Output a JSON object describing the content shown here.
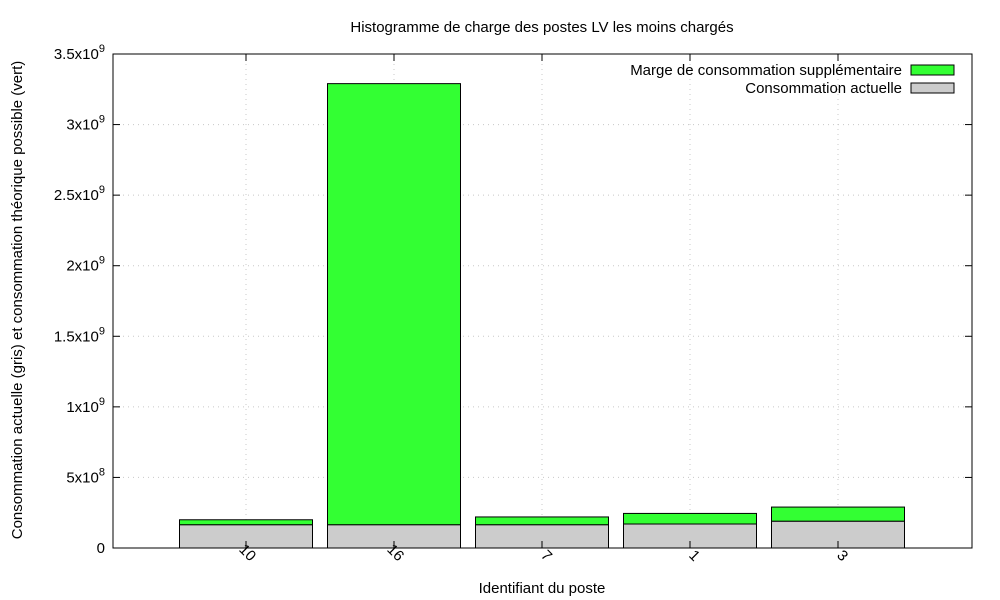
{
  "chart_data": {
    "type": "bar",
    "stacked": true,
    "title": "Histogramme de charge des postes LV les moins chargés",
    "xlabel": "Identifiant du poste",
    "ylabel": "Consommation actuelle (gris) et consommation théorique possible (vert)",
    "ylim": [
      0,
      3500000000
    ],
    "yticks": [
      {
        "value": 0,
        "mantissa": "0",
        "exp": ""
      },
      {
        "value": 500000000,
        "mantissa": "5x10",
        "exp": "8"
      },
      {
        "value": 1000000000,
        "mantissa": "1x10",
        "exp": "9"
      },
      {
        "value": 1500000000,
        "mantissa": "1.5x10",
        "exp": "9"
      },
      {
        "value": 2000000000,
        "mantissa": "2x10",
        "exp": "9"
      },
      {
        "value": 2500000000,
        "mantissa": "2.5x10",
        "exp": "9"
      },
      {
        "value": 3000000000,
        "mantissa": "3x10",
        "exp": "9"
      },
      {
        "value": 3500000000,
        "mantissa": "3.5x10",
        "exp": "9"
      }
    ],
    "categories": [
      "10",
      "16",
      "7",
      "1",
      "3"
    ],
    "grid": true,
    "legend_position": "top-right",
    "series": [
      {
        "name": "Consommation actuelle",
        "color": "#cccccc",
        "values": [
          165000000,
          165000000,
          165000000,
          170000000,
          190000000
        ]
      },
      {
        "name": "Marge de consommation supplémentaire",
        "color": "#33ff33",
        "values": [
          35000000,
          3125000000,
          55000000,
          75000000,
          100000000
        ]
      }
    ],
    "legend_order": [
      1,
      0
    ]
  }
}
